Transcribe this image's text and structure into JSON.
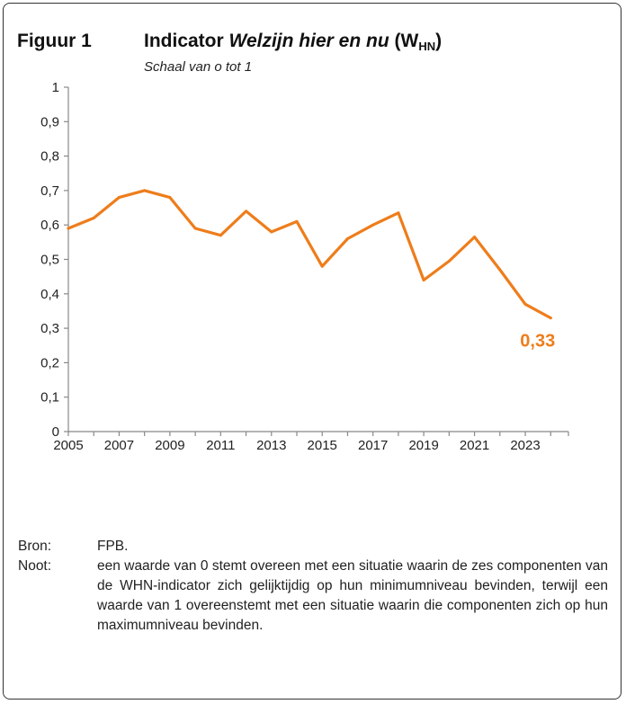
{
  "figure": {
    "number": "Figuur 1",
    "title_prefix": "Indicator ",
    "title_italic": "Welzijn hier en nu",
    "title_suffix_open": " (W",
    "title_sub": "HN",
    "title_suffix_close": ")",
    "subtitle": "Schaal van o tot 1"
  },
  "chart_data": {
    "type": "line",
    "title": "Indicator Welzijn hier en nu (WHN)",
    "xlabel": "",
    "ylabel": "",
    "x": [
      2005,
      2006,
      2007,
      2008,
      2009,
      2010,
      2011,
      2012,
      2013,
      2014,
      2015,
      2016,
      2017,
      2018,
      2019,
      2020,
      2021,
      2022,
      2023,
      2024
    ],
    "series": [
      {
        "name": "WHN",
        "color": "#ee7d1b",
        "values": [
          0.59,
          0.62,
          0.68,
          0.7,
          0.68,
          0.59,
          0.57,
          0.64,
          0.58,
          0.61,
          0.48,
          0.56,
          0.6,
          0.635,
          0.44,
          0.495,
          0.565,
          0.47,
          0.37,
          0.33
        ]
      }
    ],
    "xlim": [
      2005,
      2024.7
    ],
    "ylim": [
      0,
      1
    ],
    "x_ticks": [
      2005,
      2007,
      2009,
      2011,
      2013,
      2015,
      2017,
      2019,
      2021,
      2023
    ],
    "x_tick_labels": [
      "2005",
      "2007",
      "2009",
      "2011",
      "2013",
      "2015",
      "2017",
      "2019",
      "2021",
      "2023"
    ],
    "y_ticks": [
      0,
      0.1,
      0.2,
      0.3,
      0.4,
      0.5,
      0.6,
      0.7,
      0.8,
      0.9,
      1
    ],
    "y_tick_labels": [
      "0",
      "0,1",
      "0,2",
      "0,3",
      "0,4",
      "0,5",
      "0,6",
      "0,7",
      "0,8",
      "0,9",
      "1"
    ],
    "annotation": {
      "text": "0,33",
      "x": 2024,
      "y": 0.33,
      "color": "#ee7d1b"
    },
    "grid": false
  },
  "notes": {
    "source_label": "Bron:",
    "source_text": "FPB.",
    "note_label": "Noot:",
    "note_text": "een waarde van 0 stemt overeen met een situatie waarin de zes componenten van de WHN-indicator zich gelijktijdig op hun minimumniveau bevinden, terwijl een waarde van 1 overeenstemt met een situatie waarin die componenten zich op hun maximumniveau bevinden."
  }
}
